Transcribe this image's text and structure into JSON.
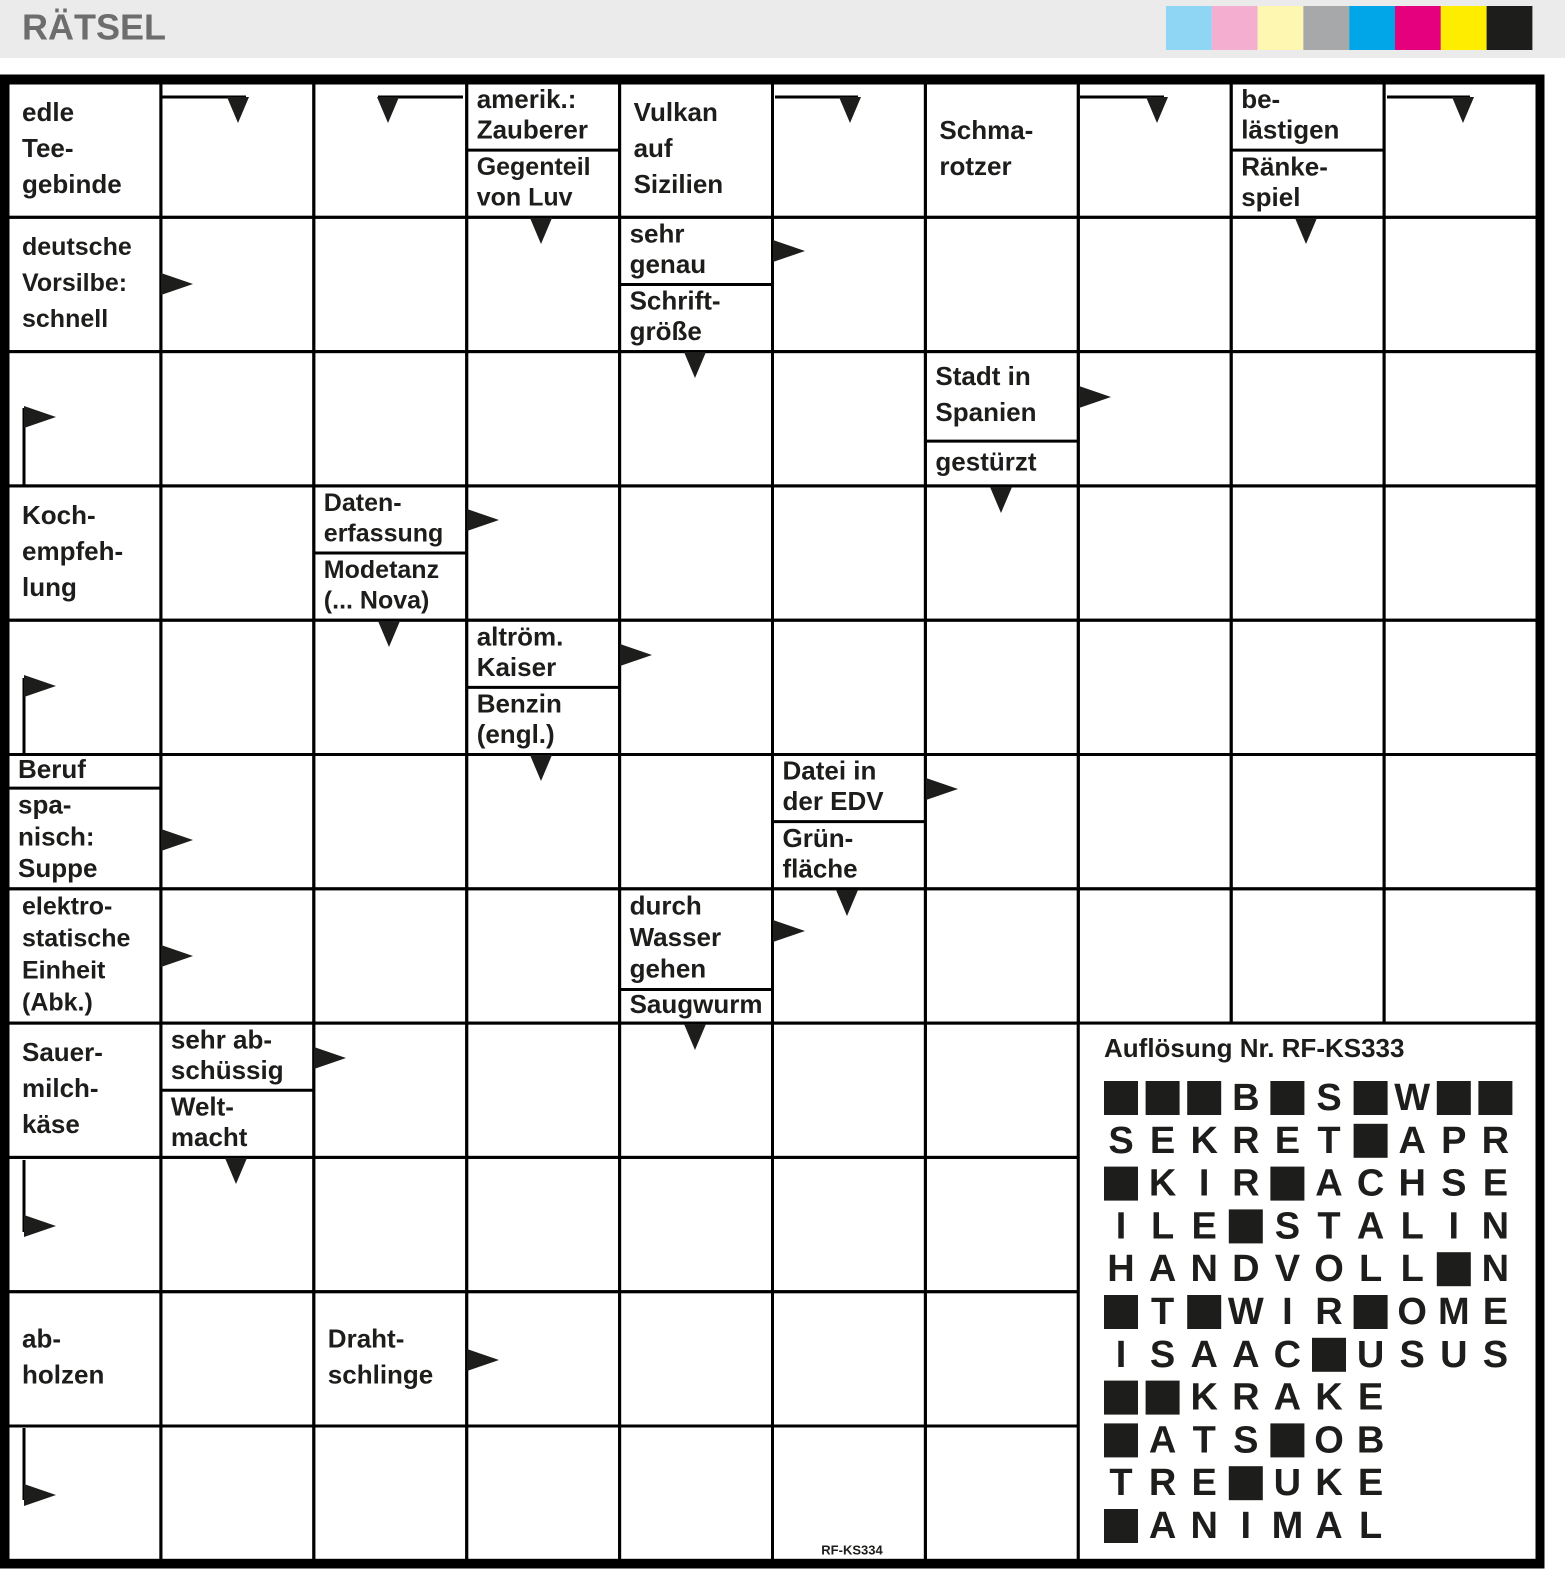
{
  "header": {
    "title": "RÄTSEL",
    "swatches": [
      "#8fd6f4",
      "#f4aecf",
      "#fef7b2",
      "#a7a8aa",
      "#00a6e7",
      "#e5007d",
      "#ffed00",
      "#1d1d1b"
    ]
  },
  "grid": {
    "rows": [
      [
        [
          [
            "edle",
            "Tee-",
            "gebinde"
          ]
        ],
        null,
        null,
        [
          [
            "amerik.:",
            "Zauberer"
          ],
          [
            "Gegenteil",
            "von Luv"
          ]
        ],
        [
          [
            "Vulkan",
            "auf",
            "Sizilien"
          ]
        ],
        null,
        [
          [
            "Schma-",
            "rotzer"
          ]
        ],
        null,
        [
          [
            "be-",
            "lästigen"
          ],
          [
            "Ränke-",
            "spiel"
          ]
        ],
        null
      ],
      [
        [
          [
            "deutsche",
            "Vorsilbe:",
            "schnell"
          ]
        ],
        null,
        null,
        null,
        [
          [
            "sehr",
            "genau"
          ],
          [
            "Schrift-",
            "größe"
          ]
        ],
        null,
        null,
        null,
        null,
        null
      ],
      [
        null,
        null,
        null,
        null,
        null,
        null,
        [
          [
            "Stadt in",
            "Spanien"
          ],
          [
            "gestürzt"
          ]
        ],
        null,
        null,
        null
      ],
      [
        [
          [
            "Koch-",
            "empfeh-",
            "lung"
          ]
        ],
        null,
        [
          [
            "Daten-",
            "erfassung"
          ],
          [
            "Modetanz",
            "(... Nova)"
          ]
        ],
        null,
        null,
        null,
        null,
        null,
        null,
        null
      ],
      [
        null,
        null,
        null,
        [
          [
            "altröm.",
            "Kaiser"
          ],
          [
            "Benzin",
            "(engl.)"
          ]
        ],
        null,
        null,
        null,
        null,
        null,
        null
      ],
      [
        [
          [
            "Beruf"
          ],
          [
            "spa-",
            "nisch:",
            "Suppe"
          ]
        ],
        null,
        null,
        null,
        null,
        [
          [
            "Datei in",
            "der EDV"
          ],
          [
            "Grün-",
            "fläche"
          ]
        ],
        null,
        null,
        null,
        null
      ],
      [
        [
          [
            "elektro-",
            "statische",
            "Einheit",
            "(Abk.)"
          ]
        ],
        null,
        null,
        null,
        [
          [
            "durch",
            "Wasser",
            "gehen"
          ],
          [
            "Saugwurm"
          ]
        ],
        null,
        null,
        null,
        null,
        null
      ],
      [
        [
          [
            "Sauer-",
            "milch-",
            "käse"
          ]
        ],
        [
          [
            "sehr ab-",
            "schüssig"
          ],
          [
            "Welt-",
            "macht"
          ]
        ],
        null,
        null,
        null,
        null,
        null
      ],
      [
        null,
        null,
        null,
        null,
        null,
        null,
        null
      ],
      [
        [
          [
            "ab-",
            "holzen"
          ]
        ],
        null,
        [
          [
            "Draht-",
            "schlinge"
          ]
        ],
        null,
        null,
        null,
        null
      ],
      [
        null,
        null,
        null,
        null,
        null,
        null,
        null
      ]
    ]
  },
  "solution": {
    "title": "Auflösung Nr. RF-KS333",
    "rows": [
      [
        null,
        null,
        null,
        "B",
        null,
        "S",
        null,
        "W",
        null,
        null
      ],
      [
        "S",
        "E",
        "K",
        "R",
        "E",
        "T",
        null,
        "A",
        "P",
        "R"
      ],
      [
        null,
        "K",
        "I",
        "R",
        null,
        "A",
        "C",
        "H",
        "S",
        "E"
      ],
      [
        "I",
        "L",
        "E",
        null,
        "S",
        "T",
        "A",
        "L",
        "I",
        "N"
      ],
      [
        "H",
        "A",
        "N",
        "D",
        "V",
        "O",
        "L",
        "L",
        null,
        "N"
      ],
      [
        null,
        "T",
        null,
        "W",
        "I",
        "R",
        null,
        "O",
        "M",
        "E"
      ],
      [
        "I",
        "S",
        "A",
        "A",
        "C",
        null,
        "U",
        "S",
        "U",
        "S"
      ],
      [
        null,
        null,
        "K",
        "R",
        "A",
        "K",
        "E"
      ],
      [
        null,
        "A",
        "T",
        "S",
        null,
        "O",
        "B"
      ],
      [
        "T",
        "R",
        "E",
        null,
        "U",
        "K",
        "E"
      ],
      [
        null,
        "A",
        "N",
        "I",
        "M",
        "A",
        "L"
      ]
    ]
  },
  "footer": {
    "code": "RF-KS334"
  }
}
